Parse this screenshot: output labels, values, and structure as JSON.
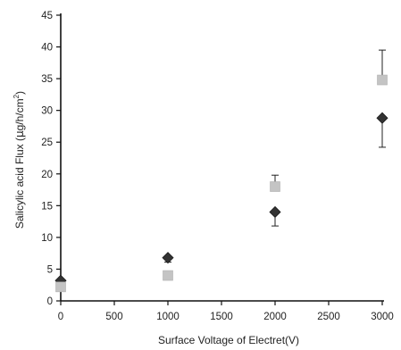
{
  "chart_data": {
    "type": "scatter",
    "title": "",
    "xlabel": "Surface Voltage of Electret(V)",
    "ylabel_parts": [
      "Salicylic acid Flux  (",
      "μ",
      "g/h/cm",
      "2",
      ")"
    ],
    "xlim": [
      0,
      3000
    ],
    "ylim": [
      0,
      45
    ],
    "xticks": [
      0,
      500,
      1000,
      1500,
      2000,
      2500,
      3000
    ],
    "yticks": [
      0,
      5,
      10,
      15,
      20,
      25,
      30,
      35,
      40,
      45
    ],
    "grid": false,
    "legend": "none",
    "series": [
      {
        "marker": "diamond",
        "color": "#333333",
        "points": [
          {
            "x": 0,
            "y": 3.2,
            "err_low": 0,
            "err_high": 0
          },
          {
            "x": 1000,
            "y": 6.8,
            "err_low": 0.7,
            "err_high": 0
          },
          {
            "x": 2000,
            "y": 14.0,
            "err_low": 2.2,
            "err_high": 0
          },
          {
            "x": 3000,
            "y": 28.8,
            "err_low": 4.6,
            "err_high": 0
          }
        ]
      },
      {
        "marker": "square",
        "color": "#c4c4c4",
        "points": [
          {
            "x": 0,
            "y": 2.2,
            "err_low": 0,
            "err_high": 0
          },
          {
            "x": 1000,
            "y": 4.0,
            "err_low": 0,
            "err_high": 0
          },
          {
            "x": 2000,
            "y": 18.0,
            "err_low": 0,
            "err_high": 1.8
          },
          {
            "x": 3000,
            "y": 34.8,
            "err_low": 0,
            "err_high": 4.7
          }
        ]
      }
    ]
  }
}
